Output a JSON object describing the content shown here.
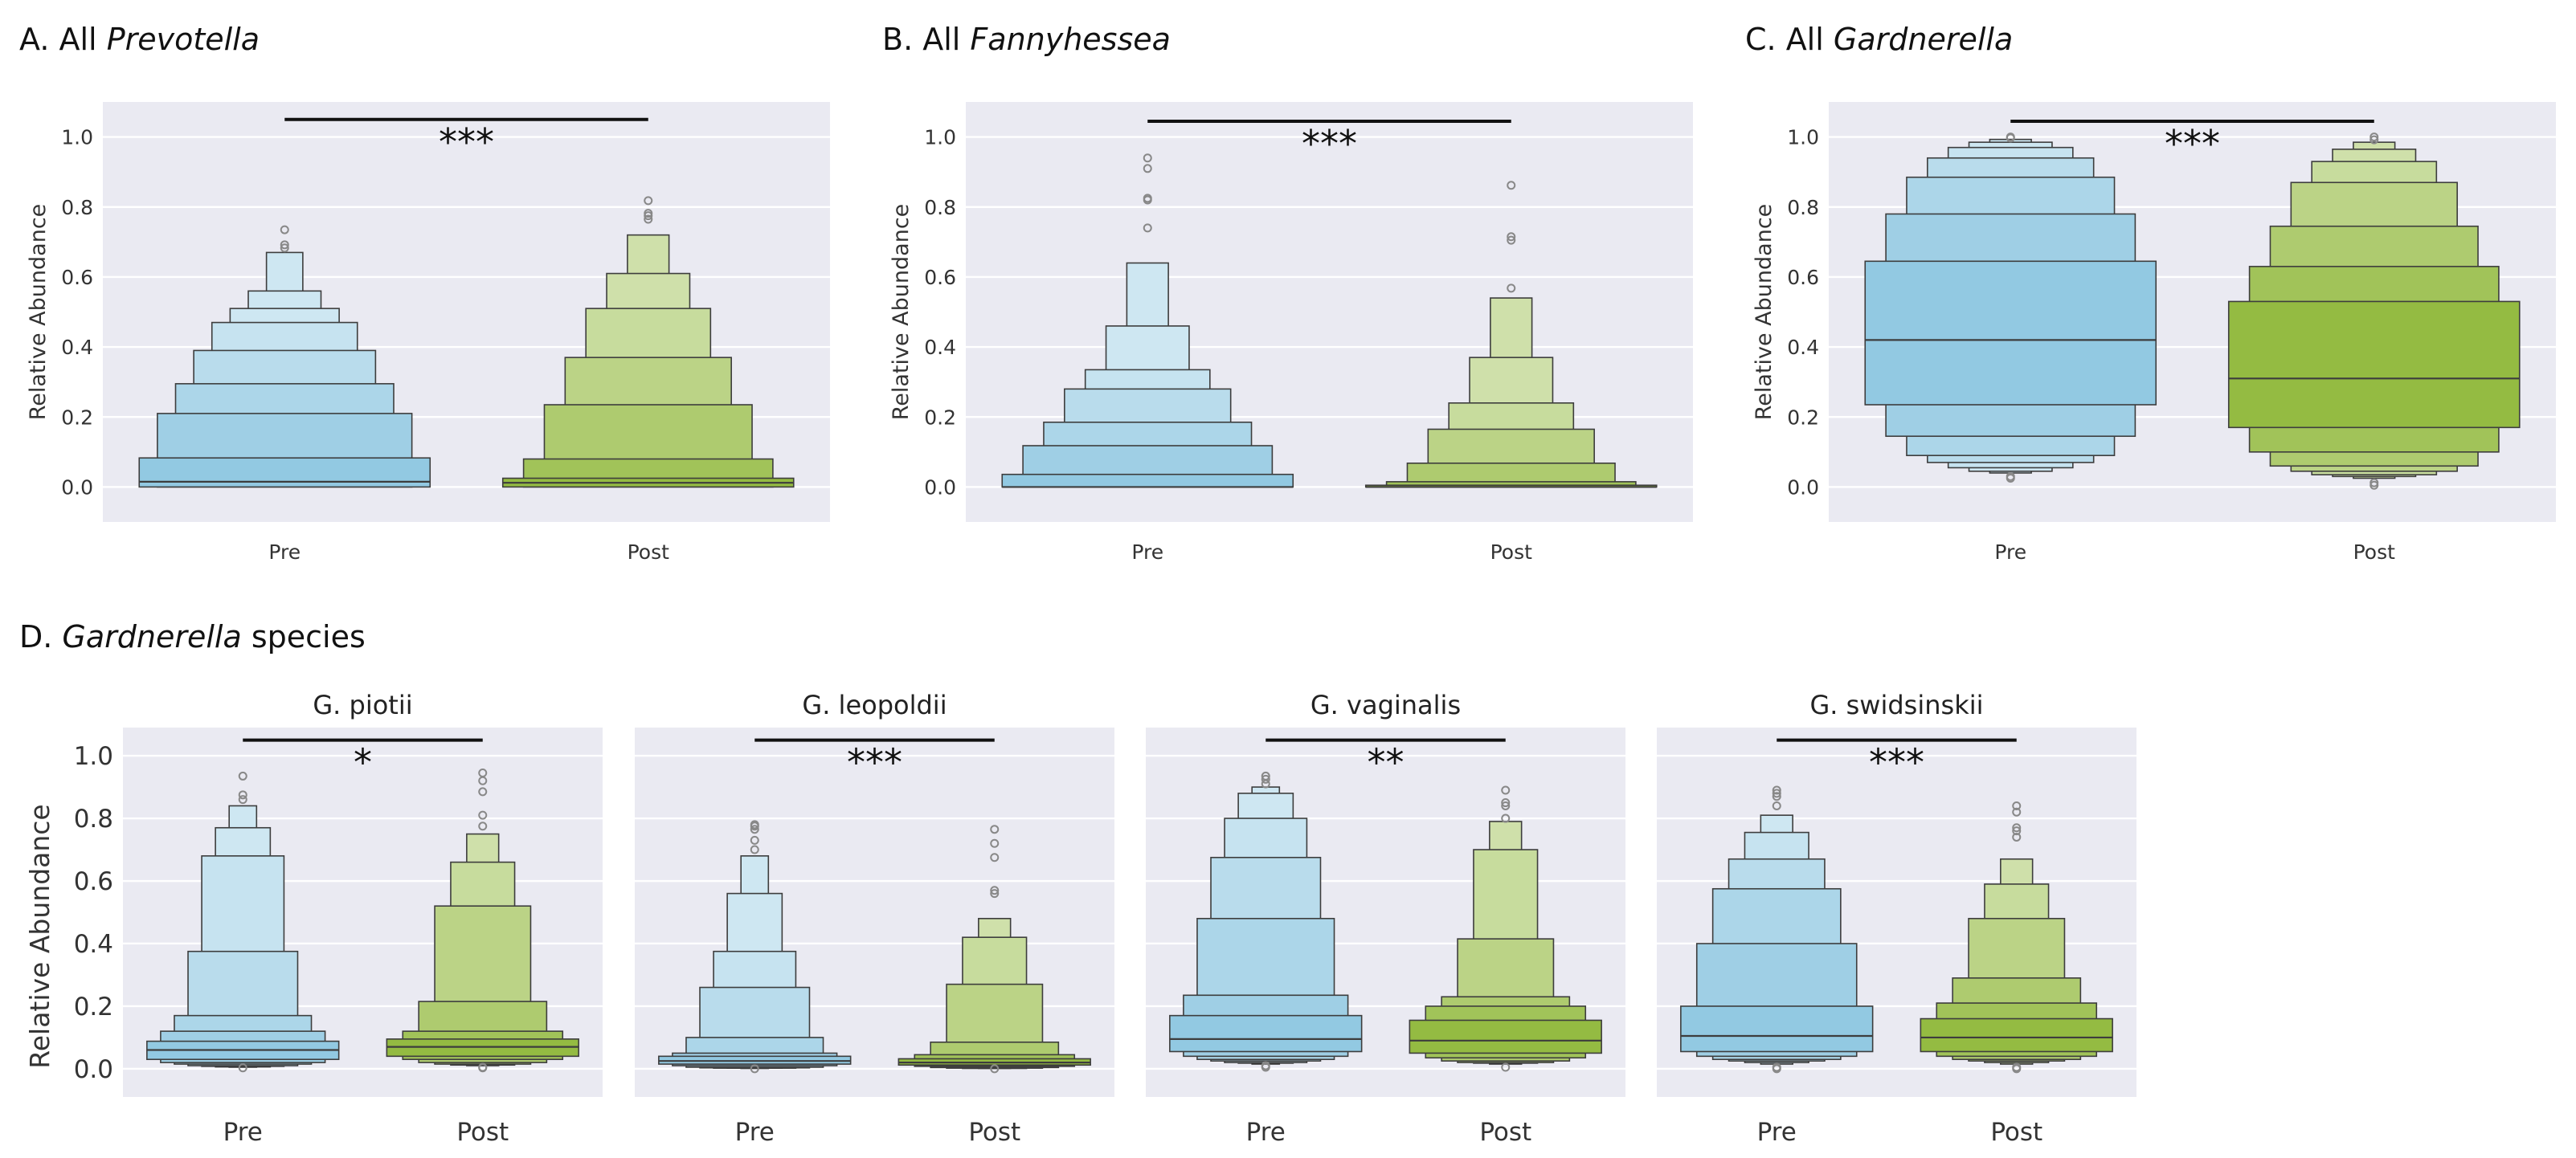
{
  "colors": {
    "pre": "#92C9E2",
    "post": "#94BB42",
    "panel_bg": "#EAEAF2",
    "grid": "#FFFFFF",
    "edge": "#3D3D3D",
    "bracket": "#111111"
  },
  "panel_labels": {
    "a": {
      "prefix": "A. All ",
      "italic": "Prevotella",
      "suffix": ""
    },
    "b": {
      "prefix": "B. All ",
      "italic": "Fannyhessea",
      "suffix": ""
    },
    "c": {
      "prefix": "C. All ",
      "italic": "Gardnerella",
      "suffix": ""
    },
    "d": {
      "prefix": "D. ",
      "italic": "Gardnerella",
      "suffix": " species"
    }
  },
  "chart_data": [
    {
      "type": "boxen",
      "panel": "A",
      "title": "",
      "xlabel": "",
      "ylabel": "Relative Abundance",
      "categories": [
        "Pre",
        "Post"
      ],
      "yticks": [
        "0.0",
        "0.2",
        "0.4",
        "0.6",
        "0.8",
        "1.0"
      ],
      "ylim": [
        -0.1,
        1.1
      ],
      "grid": true,
      "significance": "***",
      "bracket_y": 1.05,
      "series": [
        {
          "median": 0.015,
          "levels": [
            [
              0.0,
              0.083
            ],
            [
              0.0,
              0.21
            ],
            [
              0.01,
              0.295
            ],
            [
              0.015,
              0.39
            ],
            [
              0.02,
              0.47
            ],
            [
              0.02,
              0.51
            ],
            [
              0.02,
              0.56
            ],
            [
              0.02,
              0.67
            ]
          ],
          "outliers": [
            0.683,
            0.692,
            0.735
          ]
        },
        {
          "median": 0.012,
          "levels": [
            [
              0.0,
              0.025
            ],
            [
              0.0,
              0.08
            ],
            [
              0.003,
              0.235
            ],
            [
              0.005,
              0.37
            ],
            [
              0.005,
              0.51
            ],
            [
              0.006,
              0.61
            ],
            [
              0.006,
              0.72
            ]
          ],
          "outliers": [
            0.765,
            0.775,
            0.782,
            0.818
          ]
        }
      ]
    },
    {
      "type": "boxen",
      "panel": "B",
      "title": "",
      "xlabel": "",
      "ylabel": "Relative Abundance",
      "categories": [
        "Pre",
        "Post"
      ],
      "yticks": [
        "0.0",
        "0.2",
        "0.4",
        "0.6",
        "0.8",
        "1.0"
      ],
      "ylim": [
        -0.1,
        1.1
      ],
      "grid": true,
      "significance": "***",
      "bracket_y": 1.045,
      "series": [
        {
          "median": 0.0,
          "levels": [
            [
              0.0,
              0.036
            ],
            [
              0.0,
              0.118
            ],
            [
              0.0,
              0.185
            ],
            [
              0.0,
              0.28
            ],
            [
              0.0,
              0.335
            ],
            [
              0.0,
              0.46
            ],
            [
              0.0,
              0.64
            ]
          ],
          "outliers": [
            0.74,
            0.82,
            0.825,
            0.91,
            0.94
          ]
        },
        {
          "median": 0.0,
          "levels": [
            [
              0.0,
              0.005
            ],
            [
              0.0,
              0.015
            ],
            [
              0.0,
              0.068
            ],
            [
              0.0,
              0.165
            ],
            [
              0.0,
              0.24
            ],
            [
              0.0,
              0.37
            ],
            [
              0.0,
              0.54
            ]
          ],
          "outliers": [
            0.568,
            0.705,
            0.715,
            0.862
          ]
        }
      ]
    },
    {
      "type": "boxen",
      "panel": "C",
      "title": "",
      "xlabel": "",
      "ylabel": "Relative Abundance",
      "categories": [
        "Pre",
        "Post"
      ],
      "yticks": [
        "0.0",
        "0.2",
        "0.4",
        "0.6",
        "0.8",
        "1.0"
      ],
      "ylim": [
        -0.1,
        1.1
      ],
      "grid": true,
      "significance": "***",
      "bracket_y": 1.045,
      "series": [
        {
          "median": 0.42,
          "levels": [
            [
              0.235,
              0.645
            ],
            [
              0.145,
              0.78
            ],
            [
              0.09,
              0.885
            ],
            [
              0.07,
              0.94
            ],
            [
              0.055,
              0.97
            ],
            [
              0.045,
              0.985
            ],
            [
              0.04,
              0.993
            ]
          ],
          "outliers": [
            0.03,
            0.025,
            0.997,
            1.0
          ]
        },
        {
          "median": 0.31,
          "levels": [
            [
              0.17,
              0.53
            ],
            [
              0.1,
              0.63
            ],
            [
              0.06,
              0.745
            ],
            [
              0.045,
              0.87
            ],
            [
              0.035,
              0.93
            ],
            [
              0.03,
              0.965
            ],
            [
              0.025,
              0.985
            ]
          ],
          "outliers": [
            0.012,
            0.005,
            0.992,
            1.0
          ]
        }
      ]
    },
    {
      "type": "boxen",
      "panel": "D1",
      "title": "G. piotii",
      "xlabel": "",
      "ylabel": "Relative Abundance",
      "categories": [
        "Pre",
        "Post"
      ],
      "yticks": [
        "0.0",
        "0.2",
        "0.4",
        "0.6",
        "0.8",
        "1.0"
      ],
      "ylim": [
        -0.09,
        1.09
      ],
      "grid": true,
      "significance": "*",
      "bracket_y": 1.05,
      "series": [
        {
          "median": 0.06,
          "levels": [
            [
              0.03,
              0.088
            ],
            [
              0.02,
              0.12
            ],
            [
              0.015,
              0.17
            ],
            [
              0.01,
              0.375
            ],
            [
              0.008,
              0.68
            ],
            [
              0.006,
              0.77
            ],
            [
              0.005,
              0.84
            ]
          ],
          "outliers": [
            0.003,
            0.86,
            0.875,
            0.935
          ]
        },
        {
          "median": 0.07,
          "levels": [
            [
              0.04,
              0.095
            ],
            [
              0.03,
              0.12
            ],
            [
              0.02,
              0.215
            ],
            [
              0.015,
              0.52
            ],
            [
              0.012,
              0.66
            ],
            [
              0.01,
              0.75
            ]
          ],
          "outliers": [
            0.005,
            0.003,
            0.775,
            0.81,
            0.885,
            0.92,
            0.945
          ]
        }
      ]
    },
    {
      "type": "boxen",
      "panel": "D2",
      "title": "G. leopoldii",
      "xlabel": "",
      "ylabel": "",
      "categories": [
        "Pre",
        "Post"
      ],
      "yticks": [
        "0.0",
        "0.2",
        "0.4",
        "0.6",
        "0.8",
        "1.0"
      ],
      "ylim": [
        -0.09,
        1.09
      ],
      "grid": true,
      "significance": "***",
      "bracket_y": 1.05,
      "series": [
        {
          "median": 0.025,
          "levels": [
            [
              0.015,
              0.04
            ],
            [
              0.01,
              0.05
            ],
            [
              0.005,
              0.1
            ],
            [
              0.003,
              0.26
            ],
            [
              0.002,
              0.375
            ],
            [
              0.002,
              0.56
            ],
            [
              0.001,
              0.68
            ]
          ],
          "outliers": [
            0.0,
            0.7,
            0.73,
            0.765,
            0.775,
            0.78
          ]
        },
        {
          "median": 0.02,
          "levels": [
            [
              0.012,
              0.032
            ],
            [
              0.008,
              0.045
            ],
            [
              0.004,
              0.085
            ],
            [
              0.002,
              0.27
            ],
            [
              0.001,
              0.42
            ],
            [
              0.001,
              0.48
            ]
          ],
          "outliers": [
            0.0,
            0.56,
            0.57,
            0.675,
            0.72,
            0.765
          ]
        }
      ]
    },
    {
      "type": "boxen",
      "panel": "D3",
      "title": "G. vaginalis",
      "xlabel": "",
      "ylabel": "",
      "categories": [
        "Pre",
        "Post"
      ],
      "yticks": [
        "0.0",
        "0.2",
        "0.4",
        "0.6",
        "0.8",
        "1.0"
      ],
      "ylim": [
        -0.09,
        1.09
      ],
      "grid": true,
      "significance": "**",
      "bracket_y": 1.05,
      "series": [
        {
          "median": 0.095,
          "levels": [
            [
              0.055,
              0.17
            ],
            [
              0.04,
              0.235
            ],
            [
              0.03,
              0.48
            ],
            [
              0.025,
              0.675
            ],
            [
              0.02,
              0.8
            ],
            [
              0.018,
              0.88
            ],
            [
              0.015,
              0.9
            ]
          ],
          "outliers": [
            0.01,
            0.005,
            0.91,
            0.925,
            0.935
          ]
        },
        {
          "median": 0.09,
          "levels": [
            [
              0.05,
              0.155
            ],
            [
              0.035,
              0.2
            ],
            [
              0.025,
              0.23
            ],
            [
              0.02,
              0.415
            ],
            [
              0.018,
              0.7
            ],
            [
              0.015,
              0.79
            ]
          ],
          "outliers": [
            0.005,
            0.8,
            0.84,
            0.85,
            0.89
          ]
        }
      ]
    },
    {
      "type": "boxen",
      "panel": "D4",
      "title": "G. swidsinskii",
      "xlabel": "",
      "ylabel": "",
      "categories": [
        "Pre",
        "Post"
      ],
      "yticks": [
        "0.0",
        "0.2",
        "0.4",
        "0.6",
        "0.8",
        "1.0"
      ],
      "ylim": [
        -0.09,
        1.09
      ],
      "grid": true,
      "significance": "***",
      "bracket_y": 1.05,
      "series": [
        {
          "median": 0.105,
          "levels": [
            [
              0.055,
              0.2
            ],
            [
              0.04,
              0.4
            ],
            [
              0.03,
              0.575
            ],
            [
              0.025,
              0.67
            ],
            [
              0.02,
              0.755
            ],
            [
              0.015,
              0.81
            ]
          ],
          "outliers": [
            0.005,
            0.0,
            0.84,
            0.87,
            0.88,
            0.89
          ]
        },
        {
          "median": 0.1,
          "levels": [
            [
              0.055,
              0.16
            ],
            [
              0.04,
              0.21
            ],
            [
              0.03,
              0.29
            ],
            [
              0.025,
              0.48
            ],
            [
              0.02,
              0.59
            ],
            [
              0.015,
              0.67
            ]
          ],
          "outliers": [
            0.005,
            0.0,
            0.74,
            0.76,
            0.77,
            0.82,
            0.84
          ]
        }
      ]
    }
  ]
}
